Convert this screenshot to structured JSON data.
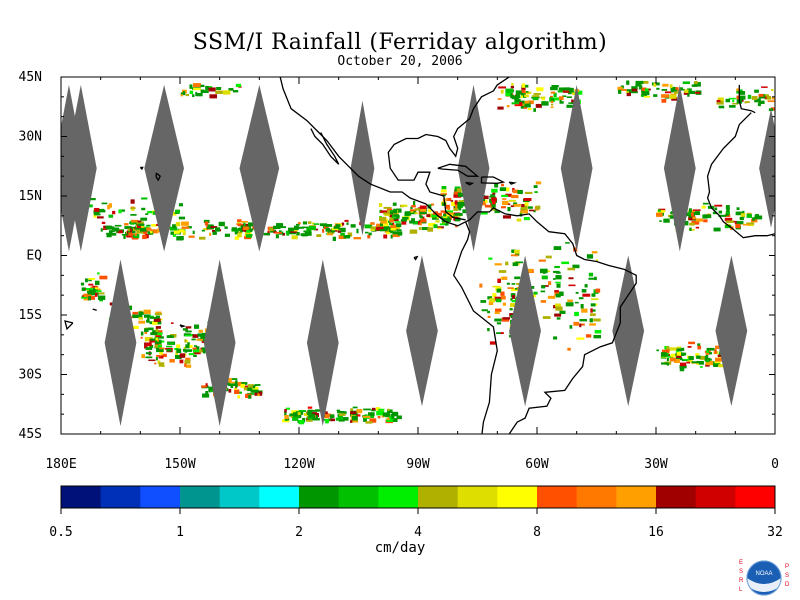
{
  "map": {
    "title": "SSM/I Rainfall (Ferriday algorithm)",
    "subtitle": "October 20, 2006",
    "lat_labels": [
      "45N",
      "30N",
      "15N",
      "EQ",
      "15S",
      "30S",
      "45S"
    ],
    "lat_values": [
      45,
      30,
      15,
      0,
      -15,
      -30,
      -45
    ],
    "lon_labels": [
      "180E",
      "150W",
      "120W",
      "90W",
      "60W",
      "30W",
      "0"
    ],
    "lon_values": [
      -180,
      -150,
      -120,
      -90,
      -60,
      -30,
      0
    ],
    "lat_range": [
      -45,
      45
    ],
    "lon_range": [
      -180,
      0
    ],
    "no_data_color": "#666666",
    "coast_color": "#000000"
  },
  "colorbar": {
    "tick_labels": [
      "0.5",
      "1",
      "2",
      "4",
      "8",
      "16",
      "32"
    ],
    "unit_label": "cm/day",
    "colors": [
      "#00127a",
      "#0030b8",
      "#0f4fff",
      "#00968f",
      "#00c8c8",
      "#00ffff",
      "#009600",
      "#00c000",
      "#00ee00",
      "#b0b000",
      "#dede00",
      "#ffff00",
      "#ff5000",
      "#ff7800",
      "#ffa000",
      "#a00000",
      "#d00000",
      "#ff0000"
    ]
  },
  "logo": {
    "left_letters": "ESRL",
    "right_letters": "PSD",
    "badge": "NOAA"
  }
}
